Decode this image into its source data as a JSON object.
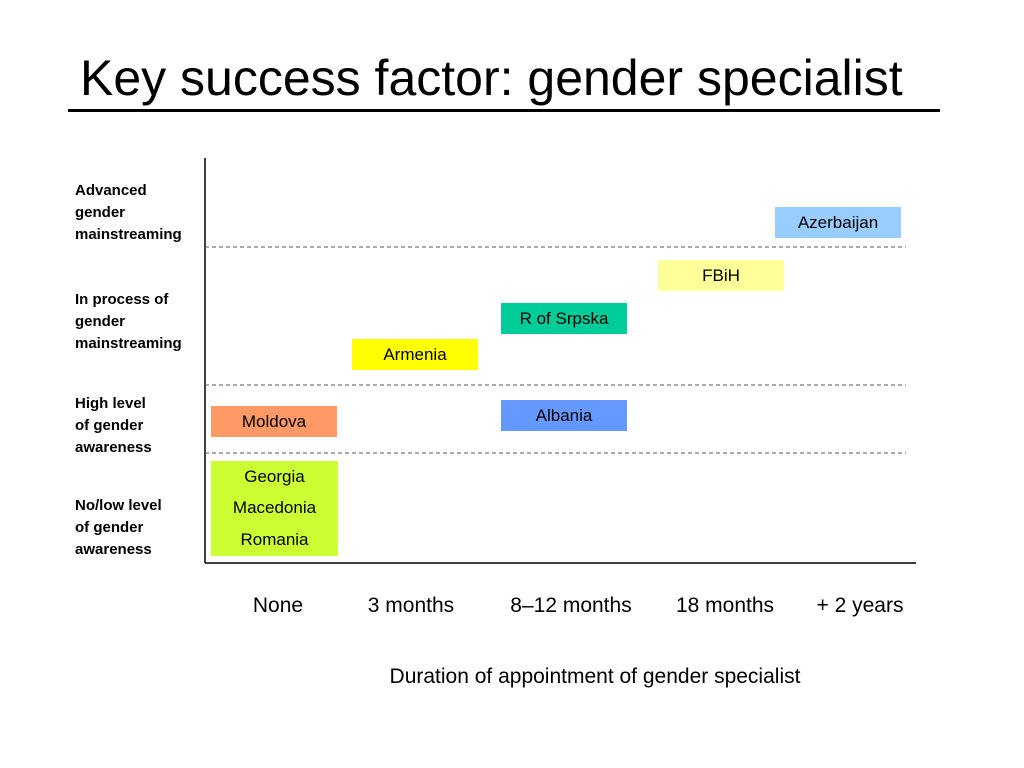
{
  "title": "Key success factor: gender specialist",
  "chart_data": {
    "type": "diagram",
    "x_axis": {
      "label": "Duration of appointment of gender specialist",
      "categories": [
        "None",
        "3 months",
        "8–12 months",
        "18 months",
        "+ 2 years"
      ]
    },
    "y_axis": {
      "levels": [
        "No/low level\nof gender\nawareness",
        "High level\nof gender\nawareness",
        "In process of\ngender\nmainstreaming",
        "Advanced\ngender\nmainstreaming"
      ]
    },
    "countries": [
      {
        "name": "Georgia",
        "x": 0,
        "level": 0,
        "color": "#ccff33"
      },
      {
        "name": "Macedonia",
        "x": 0,
        "level": 0,
        "color": "#ccff33"
      },
      {
        "name": "Romania",
        "x": 0,
        "level": 0,
        "color": "#ccff33"
      },
      {
        "name": "Moldova",
        "x": 0,
        "level": 1,
        "color": "#ff9966"
      },
      {
        "name": "Albania",
        "x": 2,
        "level": 1,
        "color": "#6699ff"
      },
      {
        "name": "Armenia",
        "x": 1,
        "level": 2,
        "color": "#ffff00"
      },
      {
        "name": "R of Srpska",
        "x": 2,
        "level": 2,
        "color": "#00cc99"
      },
      {
        "name": "FBiH",
        "x": 3,
        "level": 2,
        "color": "#ffff99"
      },
      {
        "name": "Azerbaijan",
        "x": 4,
        "level": 3,
        "color": "#99ccff"
      }
    ]
  }
}
